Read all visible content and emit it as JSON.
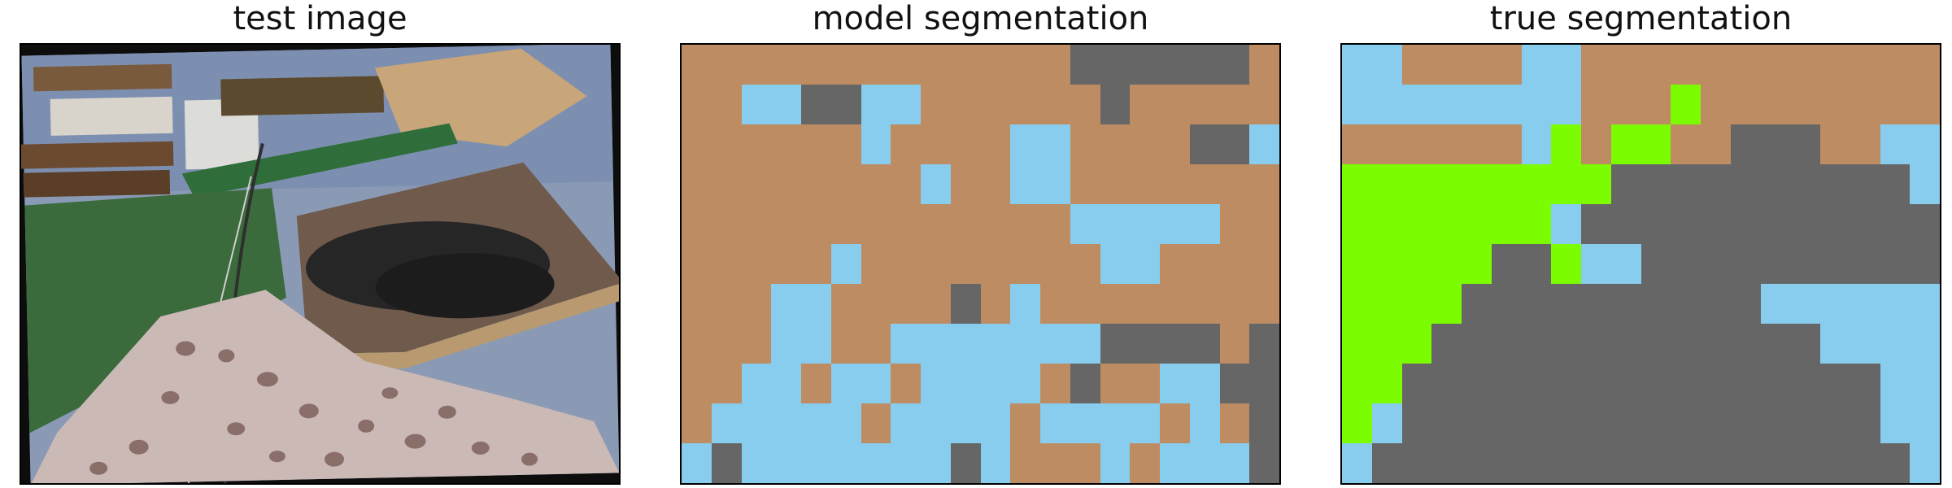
{
  "palette": {
    "S": "#bd8c62",
    "B": "#88cdee",
    "G": "#666666",
    "L": "#7cfc00"
  },
  "panels": [
    {
      "title": "test image"
    },
    {
      "title": "model segmentation",
      "grid": [
        "SSSSSSSSSSSSSGGGGGGS",
        "SSBBGGBBSSSSSSGSSSSS",
        "SSSSSSBSSSSBBSSSSGGB",
        "SSSSSSSSBSSBBSSSSSSS",
        "SSSSSSSSSSSSSBBBBBSS",
        "SSSSSBSSSSSSSSBBSSSS",
        "SSSBBSSSSGSBSSSSSSSS",
        "SSSBBSSBBBBBBBGGGGSG",
        "SSBBSBBSBBBBSGSSBBGG",
        "SBBBBBSBBBBSBBBBSBSG",
        "BGBBBBBBBGBSSSBSBBBG"
      ]
    },
    {
      "title": "true segmentation",
      "grid": [
        "BBSSSSBBSSSSSSSSSSSS",
        "BBBBBBBBSSSLSSSSSSSS",
        "SSSSSSBLSLLSSGGGSSBB",
        "LLLLLLLLLGGGGGGGGGGB",
        "LLLLLLLBGGGGGGGGGGGG",
        "LLLLLGGLBBGGGGGGGGGG",
        "LLLLGGGGGGGGGGBBBBBB",
        "LLLGGGGGGGGGGGGGBBBB",
        "LLGGGGGGGGGGGGGGGGBB",
        "LBGGGGGGGGGGGGGGGGBB",
        "BGGGGGGGGGGGGGGGGGGB"
      ]
    }
  ]
}
